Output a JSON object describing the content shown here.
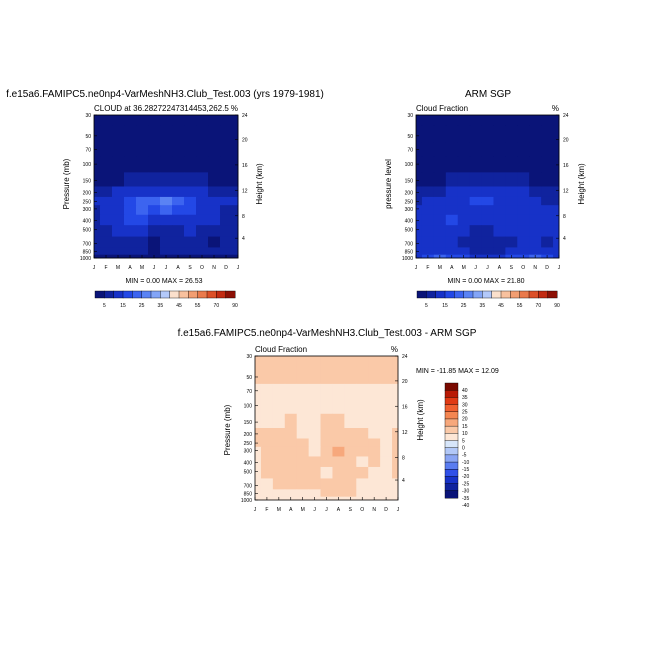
{
  "months": [
    "J",
    "F",
    "M",
    "A",
    "M",
    "J",
    "J",
    "A",
    "S",
    "O",
    "N",
    "D",
    "J"
  ],
  "pressure_ticks": [
    30,
    50,
    70,
    100,
    150,
    200,
    250,
    300,
    400,
    500,
    700,
    850,
    1000
  ],
  "height_ticks": [
    24,
    20,
    16,
    12,
    8,
    4
  ],
  "abs_palette": [
    "#0a1478",
    "#10239e",
    "#1732c8",
    "#2348e6",
    "#3c64f0",
    "#5a83f4",
    "#83a5f7",
    "#b3c9fa",
    "#fbe0cc",
    "#f8c19e",
    "#f29e72",
    "#ea7a4c",
    "#dc5028",
    "#c22b12",
    "#8c1005"
  ],
  "diff_palette": [
    "#0a1478",
    "#10239e",
    "#1732c8",
    "#3050e8",
    "#5a7cf0",
    "#8aa5f4",
    "#b2c8f8",
    "#d7e6fa",
    "#fde7d6",
    "#fac9a8",
    "#f7a87c",
    "#f48651",
    "#f06030",
    "#e03a14",
    "#b81a05",
    "#7a0a00"
  ],
  "panels": [
    {
      "id": "model",
      "title": "f.e15a6.FAMIPC5.ne0np4-VarMeshNH3.Club_Test.003 (yrs 1979-1981)",
      "subtitle_left": "CLOUD at 36.28272247314453,262.5",
      "subtitle_right": "%",
      "ylabel": "Pressure (mb)",
      "y2label": "Height (km)",
      "stats": "MIN =  0.00 MAX = 26.53",
      "colorbar_labels": [
        "5",
        "15",
        "25",
        "35",
        "45",
        "55",
        "70",
        "90"
      ]
    },
    {
      "id": "obs",
      "title": "ARM SGP",
      "subtitle_left": "Cloud Fraction",
      "subtitle_right": "%",
      "ylabel": "pressure level",
      "y2label": "Height (km)",
      "stats": "MIN =  0.00 MAX = 21.80",
      "colorbar_labels": [
        "5",
        "15",
        "25",
        "35",
        "45",
        "55",
        "70",
        "90"
      ]
    },
    {
      "id": "diff",
      "title": "f.e15a6.FAMIPC5.ne0np4-VarMeshNH3.Club_Test.003 - ARM SGP",
      "subtitle_left": "Cloud Fraction",
      "subtitle_right": "%",
      "ylabel": "Pressure (mb)",
      "y2label": "Height (km)",
      "stats": "MIN = -11.85 MAX =  12.09",
      "colorbar_labels": [
        "40",
        "35",
        "30",
        "25",
        "20",
        "15",
        "10",
        "5",
        "0",
        "-5",
        "-10",
        "-15",
        "-20",
        "-25",
        "-30",
        "-35",
        "-40"
      ]
    }
  ],
  "chart_data": [
    {
      "type": "heatmap",
      "title": "f.e15a6.FAMIPC5.ne0np4-VarMeshNH3.Club_Test.003 (yrs 1979-1981)",
      "subtitle": "CLOUD at 36.28272247314453,262.5",
      "units": "%",
      "xlabel": "",
      "ylabel": "Pressure (mb)",
      "y2label": "Height (km)",
      "x": [
        "J",
        "F",
        "M",
        "A",
        "M",
        "J",
        "J",
        "A",
        "S",
        "O",
        "N",
        "D",
        "J"
      ],
      "y": [
        30,
        50,
        70,
        100,
        150,
        200,
        250,
        300,
        400,
        500,
        700,
        850,
        1000
      ],
      "z": [
        [
          2,
          2,
          2,
          2,
          2,
          2,
          2,
          2,
          2,
          2,
          2,
          2,
          2
        ],
        [
          2,
          2,
          2,
          2,
          2,
          2,
          2,
          2,
          2,
          2,
          2,
          2,
          2
        ],
        [
          2,
          2,
          2,
          2,
          2,
          2,
          2,
          2,
          2,
          2,
          2,
          2,
          2
        ],
        [
          2,
          2,
          2,
          2,
          2,
          2,
          2,
          2,
          2,
          2,
          2,
          2,
          2
        ],
        [
          4,
          4,
          4,
          5,
          6,
          7,
          7,
          6,
          6,
          5,
          4,
          4,
          4
        ],
        [
          8,
          9,
          10,
          12,
          13,
          12,
          12,
          11,
          12,
          10,
          8,
          8,
          8
        ],
        [
          10,
          12,
          14,
          17,
          20,
          21,
          26,
          20,
          17,
          14,
          11,
          10,
          10
        ],
        [
          9,
          11,
          14,
          18,
          20,
          19,
          22,
          18,
          15,
          12,
          10,
          9,
          9
        ],
        [
          9,
          11,
          14,
          17,
          16,
          13,
          13,
          12,
          12,
          12,
          10,
          9,
          9
        ],
        [
          8,
          9,
          11,
          12,
          10,
          7,
          8,
          8,
          10,
          9,
          6,
          8,
          8
        ],
        [
          6,
          7,
          8,
          8,
          6,
          4,
          5,
          5,
          7,
          7,
          4,
          6,
          6
        ],
        [
          6,
          7,
          7,
          6,
          5,
          4,
          5,
          5,
          6,
          6,
          5,
          6,
          6
        ],
        [
          4,
          4,
          4,
          4,
          4,
          3,
          3,
          3,
          4,
          4,
          4,
          4,
          4
        ]
      ],
      "zlim": [
        0,
        26.53
      ],
      "levels": [
        5,
        10,
        15,
        20,
        25,
        30,
        35,
        40,
        45,
        50,
        55,
        60,
        70,
        80,
        90
      ],
      "colorbar_labels": [
        "5",
        "15",
        "25",
        "35",
        "45",
        "55",
        "70",
        "90"
      ],
      "min": 0.0,
      "max": 26.53
    },
    {
      "type": "heatmap",
      "title": "ARM SGP",
      "subtitle": "Cloud Fraction",
      "units": "%",
      "xlabel": "",
      "ylabel": "pressure level",
      "y2label": "Height (km)",
      "x": [
        "J",
        "F",
        "M",
        "A",
        "M",
        "J",
        "J",
        "A",
        "S",
        "O",
        "N",
        "D",
        "J"
      ],
      "y": [
        30,
        50,
        70,
        100,
        150,
        200,
        250,
        300,
        400,
        500,
        700,
        850,
        1000
      ],
      "z": [
        [
          2,
          2,
          2,
          2,
          2,
          2,
          2,
          2,
          2,
          2,
          2,
          2,
          2
        ],
        [
          2,
          2,
          2,
          2,
          2,
          2,
          2,
          2,
          2,
          2,
          2,
          2,
          2
        ],
        [
          2,
          2,
          2,
          2,
          2,
          2,
          2,
          2,
          2,
          2,
          2,
          2,
          2
        ],
        [
          2,
          2,
          2,
          2,
          2,
          2,
          2,
          2,
          2,
          2,
          2,
          2,
          2
        ],
        [
          3,
          3,
          4,
          5,
          6,
          6,
          6,
          6,
          5,
          5,
          4,
          3,
          3
        ],
        [
          7,
          8,
          9,
          10,
          12,
          12,
          13,
          12,
          11,
          10,
          8,
          7,
          7
        ],
        [
          9,
          11,
          12,
          13,
          14,
          15,
          15,
          14,
          13,
          12,
          10,
          9,
          9
        ],
        [
          11,
          12,
          13,
          14,
          14,
          13,
          14,
          13,
          12,
          12,
          11,
          10,
          11
        ],
        [
          12,
          13,
          14,
          15,
          13,
          11,
          12,
          12,
          12,
          13,
          12,
          11,
          12
        ],
        [
          11,
          12,
          13,
          13,
          11,
          9,
          9,
          10,
          11,
          12,
          11,
          10,
          11
        ],
        [
          10,
          11,
          11,
          10,
          8,
          6,
          6,
          7,
          9,
          10,
          10,
          9,
          10
        ],
        [
          11,
          13,
          14,
          12,
          10,
          8,
          8,
          9,
          11,
          13,
          14,
          12,
          11
        ],
        [
          14,
          18,
          21,
          19,
          15,
          12,
          12,
          13,
          15,
          18,
          20,
          17,
          14
        ]
      ],
      "zlim": [
        0,
        21.8
      ],
      "levels": [
        5,
        10,
        15,
        20,
        25,
        30,
        35,
        40,
        45,
        50,
        55,
        60,
        70,
        80,
        90
      ],
      "colorbar_labels": [
        "5",
        "15",
        "25",
        "35",
        "45",
        "55",
        "70",
        "90"
      ],
      "min": 0.0,
      "max": 21.8
    },
    {
      "type": "heatmap",
      "title": "f.e15a6.FAMIPC5.ne0np4-VarMeshNH3.Club_Test.003 - ARM SGP",
      "subtitle": "Cloud Fraction",
      "units": "%",
      "xlabel": "",
      "ylabel": "Pressure (mb)",
      "y2label": "Height (km)",
      "x": [
        "J",
        "F",
        "M",
        "A",
        "M",
        "J",
        "J",
        "A",
        "S",
        "O",
        "N",
        "D",
        "J"
      ],
      "y": [
        30,
        50,
        70,
        100,
        150,
        200,
        250,
        300,
        400,
        500,
        700,
        850,
        1000
      ],
      "z": [
        [
          1,
          1,
          1,
          1,
          1,
          1,
          1,
          1,
          1,
          1,
          1,
          1,
          1
        ],
        [
          1,
          1,
          1,
          1,
          1,
          1,
          1,
          1,
          1,
          1,
          1,
          1,
          1
        ],
        [
          -1,
          -1,
          -1,
          -1,
          -1,
          -1,
          -1,
          -1,
          -1,
          -1,
          -1,
          -1,
          -1
        ],
        [
          -1,
          -1,
          -1,
          -1,
          -1,
          -1,
          -1,
          -1,
          -1,
          -1,
          -1,
          -1,
          -1
        ],
        [
          -1,
          -1,
          -1,
          3,
          -1,
          -1,
          2,
          2,
          -1,
          -1,
          -1,
          -1,
          -1
        ],
        [
          1,
          1,
          2,
          3,
          -1,
          -1,
          2,
          2,
          2,
          1,
          -1,
          -1,
          1
        ],
        [
          1,
          1,
          2,
          3,
          3,
          -1,
          2,
          3,
          3,
          2,
          1,
          -1,
          1
        ],
        [
          -1,
          1,
          2,
          4,
          4,
          -1,
          3,
          7,
          3,
          1,
          1,
          -1,
          1
        ],
        [
          -1,
          1,
          2,
          2,
          3,
          2,
          1,
          1,
          1,
          -1,
          1,
          -1,
          1
        ],
        [
          -1,
          1,
          1,
          1,
          2,
          2,
          -1,
          1,
          1,
          1,
          -1,
          -1,
          1
        ],
        [
          -1,
          -1,
          1,
          1,
          1,
          1,
          1,
          1,
          1,
          -1,
          -1,
          -1,
          -1
        ],
        [
          -1,
          -1,
          -1,
          -1,
          -1,
          -1,
          1,
          1,
          1,
          -1,
          -1,
          -1,
          -1
        ],
        [
          -1,
          -1,
          -1,
          -1,
          -1,
          -1,
          -1,
          -1,
          -1,
          -1,
          -1,
          -1,
          -1
        ]
      ],
      "zlim": [
        -11.85,
        12.09
      ],
      "levels": [
        -40,
        -35,
        -30,
        -25,
        -20,
        -15,
        -10,
        -5,
        0,
        5,
        10,
        15,
        20,
        25,
        30,
        35,
        40
      ],
      "colorbar_labels": [
        "40",
        "35",
        "30",
        "25",
        "20",
        "15",
        "10",
        "5",
        "0",
        "-5",
        "-10",
        "-15",
        "-20",
        "-25",
        "-30",
        "-35",
        "-40"
      ],
      "min": -11.85,
      "max": 12.09
    }
  ]
}
